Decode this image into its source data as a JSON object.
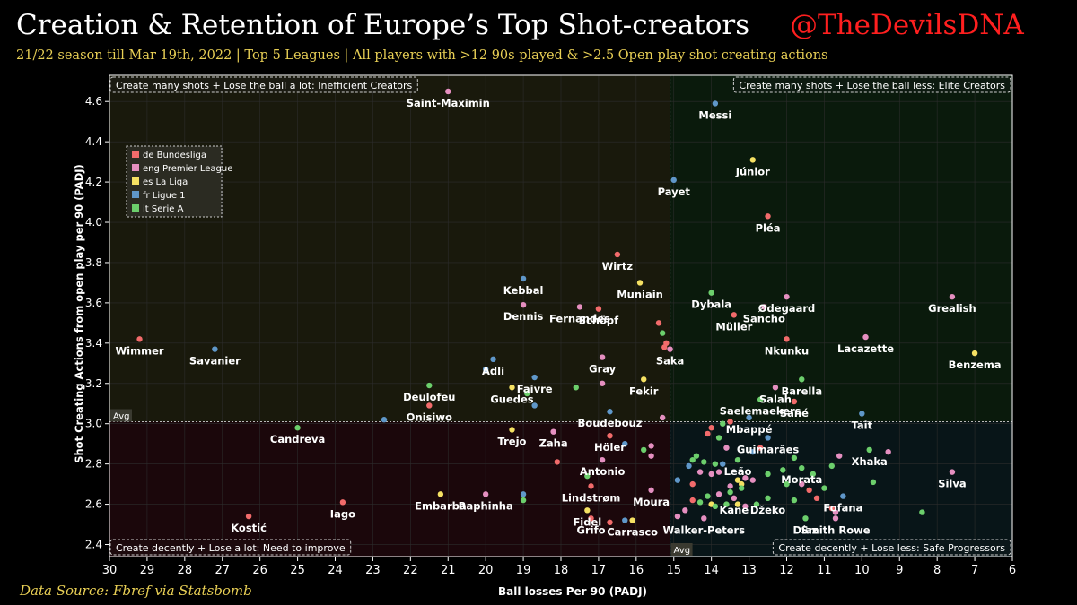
{
  "title": "Creation & Retention of Europe’s Top Shot-creators",
  "handle": "@TheDevilsDNA",
  "subtitle": "21/22 season till Mar 19th, 2022 | Top 5 Leagues | All players with >12 90s played & >2.5 Open play shot creating actions",
  "source": "Data Source: Fbref via Statsbomb",
  "colors": {
    "de": "#f26b6b",
    "eng": "#e58fc0",
    "es": "#f5e163",
    "fr": "#5f97c9",
    "it": "#6ccf6c"
  },
  "chart_data": {
    "type": "scatter",
    "xlabel": "Ball losses Per 90 (PADJ)",
    "ylabel": "Shot Creating Actions from open play per 90 (PADJ)",
    "xlim": [
      30,
      6
    ],
    "ylim": [
      2.34,
      4.73
    ],
    "x_ticks": [
      30,
      29,
      28,
      27,
      26,
      25,
      24,
      23,
      22,
      21,
      20,
      19,
      18,
      17,
      16,
      15,
      14,
      13,
      12,
      11,
      10,
      9,
      8,
      7,
      6
    ],
    "y_ticks": [
      2.4,
      2.6,
      2.8,
      3.0,
      3.2,
      3.4,
      3.6,
      3.8,
      4.0,
      4.2,
      4.4,
      4.6
    ],
    "avg_x": 15.1,
    "avg_y": 3.01,
    "avg_label": "Avg",
    "quadrants": {
      "top_left": "Create many shots + Lose the ball a lot: Inefficient Creators",
      "top_right": "Create many shots + Lose the ball less: Elite Creators",
      "bottom_left": "Create decently + Lose a lot: Need to improve",
      "bottom_right": "Create decently + Lose less: Safe Progressors"
    },
    "legend": [
      {
        "key": "de",
        "label": "de Bundesliga"
      },
      {
        "key": "eng",
        "label": "eng Premier League"
      },
      {
        "key": "es",
        "label": "es La Liga"
      },
      {
        "key": "fr",
        "label": "fr Ligue 1"
      },
      {
        "key": "it",
        "label": "it Serie A"
      }
    ],
    "legend_position": "upper-left",
    "labeled_points": [
      {
        "name": "Saint-Maximin",
        "x": 21.0,
        "y": 4.65,
        "league": "eng"
      },
      {
        "name": "Messi",
        "x": 13.9,
        "y": 4.59,
        "league": "fr"
      },
      {
        "name": "Júnior",
        "x": 12.9,
        "y": 4.31,
        "league": "es"
      },
      {
        "name": "Payet",
        "x": 15.0,
        "y": 4.21,
        "league": "fr"
      },
      {
        "name": "Pléa",
        "x": 12.5,
        "y": 4.03,
        "league": "de"
      },
      {
        "name": "Wirtz",
        "x": 16.5,
        "y": 3.84,
        "league": "de"
      },
      {
        "name": "Kebbal",
        "x": 19.0,
        "y": 3.72,
        "league": "fr"
      },
      {
        "name": "Muniain",
        "x": 15.9,
        "y": 3.7,
        "league": "es"
      },
      {
        "name": "Dybala",
        "x": 14.0,
        "y": 3.65,
        "league": "it"
      },
      {
        "name": "Grealish",
        "x": 7.6,
        "y": 3.63,
        "league": "eng"
      },
      {
        "name": "Fernandes",
        "x": 17.5,
        "y": 3.58,
        "league": "eng"
      },
      {
        "name": "Sancho",
        "x": 12.6,
        "y": 3.58,
        "league": "eng"
      },
      {
        "name": "Ødegaard",
        "x": 12.0,
        "y": 3.63,
        "league": "eng"
      },
      {
        "name": "Dennis",
        "x": 19.0,
        "y": 3.59,
        "league": "eng"
      },
      {
        "name": "Schöpf",
        "x": 17.0,
        "y": 3.57,
        "league": "de"
      },
      {
        "name": "Müller",
        "x": 13.4,
        "y": 3.54,
        "league": "de"
      },
      {
        "name": "Wimmer",
        "x": 29.2,
        "y": 3.42,
        "league": "de"
      },
      {
        "name": "Savanier",
        "x": 27.2,
        "y": 3.37,
        "league": "fr"
      },
      {
        "name": "Gray",
        "x": 16.9,
        "y": 3.33,
        "league": "eng"
      },
      {
        "name": "Saka",
        "x": 15.1,
        "y": 3.37,
        "league": "eng"
      },
      {
        "name": "Nkunku",
        "x": 12.0,
        "y": 3.42,
        "league": "de"
      },
      {
        "name": "Lacazette",
        "x": 9.9,
        "y": 3.43,
        "league": "eng"
      },
      {
        "name": "Benzema",
        "x": 7.0,
        "y": 3.35,
        "league": "es"
      },
      {
        "name": "Adli",
        "x": 19.8,
        "y": 3.32,
        "league": "fr"
      },
      {
        "name": "Deulofeu",
        "x": 21.5,
        "y": 3.19,
        "league": "it"
      },
      {
        "name": "Faivre",
        "x": 18.7,
        "y": 3.23,
        "league": "fr"
      },
      {
        "name": "Guedes",
        "x": 19.3,
        "y": 3.18,
        "league": "es"
      },
      {
        "name": "Fekir",
        "x": 15.8,
        "y": 3.22,
        "league": "es"
      },
      {
        "name": "Salah",
        "x": 12.3,
        "y": 3.18,
        "league": "eng"
      },
      {
        "name": "Barella",
        "x": 11.6,
        "y": 3.22,
        "league": "it"
      },
      {
        "name": "Onisiwo",
        "x": 21.5,
        "y": 3.09,
        "league": "de"
      },
      {
        "name": "Boudebouz",
        "x": 16.7,
        "y": 3.06,
        "league": "fr"
      },
      {
        "name": "Saelemaekers",
        "x": 12.7,
        "y": 3.12,
        "league": "it"
      },
      {
        "name": "Sané",
        "x": 11.8,
        "y": 3.11,
        "league": "de"
      },
      {
        "name": "Tait",
        "x": 10.0,
        "y": 3.05,
        "league": "fr"
      },
      {
        "name": "Mbappé",
        "x": 13.0,
        "y": 3.03,
        "league": "fr"
      },
      {
        "name": "Candreva",
        "x": 25.0,
        "y": 2.98,
        "league": "it"
      },
      {
        "name": "Trejo",
        "x": 19.3,
        "y": 2.97,
        "league": "es"
      },
      {
        "name": "Höler",
        "x": 16.7,
        "y": 2.94,
        "league": "de"
      },
      {
        "name": "Zaha",
        "x": 18.2,
        "y": 2.96,
        "league": "eng"
      },
      {
        "name": "Guimarães",
        "x": 12.5,
        "y": 2.93,
        "league": "fr"
      },
      {
        "name": "Antonio",
        "x": 16.9,
        "y": 2.82,
        "league": "eng"
      },
      {
        "name": "Leão",
        "x": 13.3,
        "y": 2.82,
        "league": "it"
      },
      {
        "name": "Xhaka",
        "x": 9.8,
        "y": 2.87,
        "league": "it"
      },
      {
        "name": "Morata",
        "x": 11.6,
        "y": 2.78,
        "league": "it"
      },
      {
        "name": "Silva",
        "x": 7.6,
        "y": 2.76,
        "league": "eng"
      },
      {
        "name": "Embarba",
        "x": 21.2,
        "y": 2.65,
        "league": "es"
      },
      {
        "name": "Lindstrøm",
        "x": 17.2,
        "y": 2.69,
        "league": "de"
      },
      {
        "name": "Raphinha",
        "x": 20.0,
        "y": 2.65,
        "league": "eng"
      },
      {
        "name": "Moura",
        "x": 15.6,
        "y": 2.67,
        "league": "eng"
      },
      {
        "name": "Kane",
        "x": 13.4,
        "y": 2.63,
        "league": "eng"
      },
      {
        "name": "Džeko",
        "x": 12.5,
        "y": 2.63,
        "league": "it"
      },
      {
        "name": "Fofana",
        "x": 10.5,
        "y": 2.64,
        "league": "fr"
      },
      {
        "name": "Iago",
        "x": 23.8,
        "y": 2.61,
        "league": "de"
      },
      {
        "name": "Fidel",
        "x": 17.3,
        "y": 2.57,
        "league": "es"
      },
      {
        "name": "Kostić",
        "x": 26.3,
        "y": 2.54,
        "league": "de"
      },
      {
        "name": "Grifo",
        "x": 17.2,
        "y": 2.53,
        "league": "de"
      },
      {
        "name": "Carrasco",
        "x": 16.1,
        "y": 2.52,
        "league": "es"
      },
      {
        "name": "Walker-Peters",
        "x": 14.2,
        "y": 2.53,
        "league": "eng"
      },
      {
        "name": "Díaz",
        "x": 11.5,
        "y": 2.53,
        "league": "it"
      },
      {
        "name": "Smith Rowe",
        "x": 10.7,
        "y": 2.53,
        "league": "eng"
      }
    ],
    "other_points": [
      {
        "x": 15.4,
        "y": 3.5,
        "league": "de"
      },
      {
        "x": 15.3,
        "y": 3.45,
        "league": "it"
      },
      {
        "x": 15.2,
        "y": 3.4,
        "league": "de"
      },
      {
        "x": 15.25,
        "y": 3.38,
        "league": "de"
      },
      {
        "x": 20.0,
        "y": 3.27,
        "league": "fr"
      },
      {
        "x": 18.9,
        "y": 3.15,
        "league": "it"
      },
      {
        "x": 17.6,
        "y": 3.18,
        "league": "it"
      },
      {
        "x": 16.9,
        "y": 3.2,
        "league": "eng"
      },
      {
        "x": 18.7,
        "y": 3.09,
        "league": "fr"
      },
      {
        "x": 22.7,
        "y": 3.02,
        "league": "fr"
      },
      {
        "x": 15.3,
        "y": 3.03,
        "league": "eng"
      },
      {
        "x": 16.3,
        "y": 2.9,
        "league": "fr"
      },
      {
        "x": 15.8,
        "y": 2.87,
        "league": "it"
      },
      {
        "x": 15.6,
        "y": 2.89,
        "league": "eng"
      },
      {
        "x": 15.6,
        "y": 2.84,
        "league": "eng"
      },
      {
        "x": 18.1,
        "y": 2.81,
        "league": "de"
      },
      {
        "x": 17.3,
        "y": 2.74,
        "league": "it"
      },
      {
        "x": 19.0,
        "y": 2.65,
        "league": "fr"
      },
      {
        "x": 19.0,
        "y": 2.62,
        "league": "it"
      },
      {
        "x": 16.7,
        "y": 2.51,
        "league": "de"
      },
      {
        "x": 16.3,
        "y": 2.52,
        "league": "fr"
      },
      {
        "x": 13.7,
        "y": 3.0,
        "league": "it"
      },
      {
        "x": 13.5,
        "y": 3.01,
        "league": "de"
      },
      {
        "x": 14.0,
        "y": 2.98,
        "league": "de"
      },
      {
        "x": 14.1,
        "y": 2.95,
        "league": "de"
      },
      {
        "x": 13.8,
        "y": 2.93,
        "league": "it"
      },
      {
        "x": 13.6,
        "y": 2.88,
        "league": "eng"
      },
      {
        "x": 12.7,
        "y": 2.88,
        "league": "de"
      },
      {
        "x": 12.9,
        "y": 2.86,
        "league": "fr"
      },
      {
        "x": 14.4,
        "y": 2.84,
        "league": "it"
      },
      {
        "x": 14.5,
        "y": 2.82,
        "league": "it"
      },
      {
        "x": 14.2,
        "y": 2.81,
        "league": "it"
      },
      {
        "x": 13.9,
        "y": 2.8,
        "league": "it"
      },
      {
        "x": 14.6,
        "y": 2.79,
        "league": "fr"
      },
      {
        "x": 13.7,
        "y": 2.8,
        "league": "fr"
      },
      {
        "x": 14.3,
        "y": 2.76,
        "league": "eng"
      },
      {
        "x": 14.0,
        "y": 2.75,
        "league": "eng"
      },
      {
        "x": 13.8,
        "y": 2.76,
        "league": "eng"
      },
      {
        "x": 12.5,
        "y": 2.75,
        "league": "it"
      },
      {
        "x": 12.1,
        "y": 2.77,
        "league": "it"
      },
      {
        "x": 11.3,
        "y": 2.75,
        "league": "it"
      },
      {
        "x": 10.8,
        "y": 2.79,
        "league": "it"
      },
      {
        "x": 13.1,
        "y": 2.73,
        "league": "eng"
      },
      {
        "x": 12.9,
        "y": 2.72,
        "league": "eng"
      },
      {
        "x": 13.3,
        "y": 2.72,
        "league": "es"
      },
      {
        "x": 13.2,
        "y": 2.7,
        "league": "es"
      },
      {
        "x": 14.9,
        "y": 2.72,
        "league": "fr"
      },
      {
        "x": 14.5,
        "y": 2.7,
        "league": "de"
      },
      {
        "x": 13.5,
        "y": 2.69,
        "league": "eng"
      },
      {
        "x": 13.2,
        "y": 2.68,
        "league": "it"
      },
      {
        "x": 12.0,
        "y": 2.7,
        "league": "it"
      },
      {
        "x": 11.6,
        "y": 2.7,
        "league": "eng"
      },
      {
        "x": 11.4,
        "y": 2.67,
        "league": "de"
      },
      {
        "x": 11.0,
        "y": 2.68,
        "league": "it"
      },
      {
        "x": 14.1,
        "y": 2.64,
        "league": "it"
      },
      {
        "x": 13.8,
        "y": 2.65,
        "league": "eng"
      },
      {
        "x": 13.5,
        "y": 2.66,
        "league": "it"
      },
      {
        "x": 14.5,
        "y": 2.62,
        "league": "de"
      },
      {
        "x": 14.3,
        "y": 2.61,
        "league": "it"
      },
      {
        "x": 14.0,
        "y": 2.6,
        "league": "es"
      },
      {
        "x": 13.9,
        "y": 2.59,
        "league": "it"
      },
      {
        "x": 13.6,
        "y": 2.6,
        "league": "it"
      },
      {
        "x": 13.3,
        "y": 2.6,
        "league": "es"
      },
      {
        "x": 13.1,
        "y": 2.59,
        "league": "eng"
      },
      {
        "x": 12.8,
        "y": 2.6,
        "league": "it"
      },
      {
        "x": 11.8,
        "y": 2.62,
        "league": "it"
      },
      {
        "x": 11.2,
        "y": 2.63,
        "league": "de"
      },
      {
        "x": 10.8,
        "y": 2.58,
        "league": "de"
      },
      {
        "x": 10.7,
        "y": 2.56,
        "league": "eng"
      },
      {
        "x": 14.7,
        "y": 2.57,
        "league": "eng"
      },
      {
        "x": 14.9,
        "y": 2.54,
        "league": "eng"
      },
      {
        "x": 8.4,
        "y": 2.56,
        "league": "it"
      },
      {
        "x": 9.7,
        "y": 2.71,
        "league": "it"
      },
      {
        "x": 9.3,
        "y": 2.86,
        "league": "eng"
      },
      {
        "x": 10.6,
        "y": 2.84,
        "league": "eng"
      },
      {
        "x": 11.8,
        "y": 2.83,
        "league": "it"
      }
    ]
  }
}
